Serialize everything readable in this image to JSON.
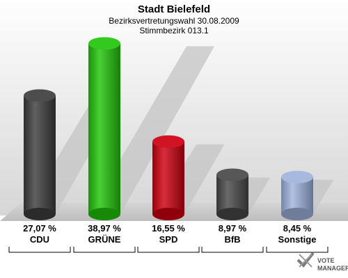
{
  "header": {
    "title": "Stadt Bielefeld",
    "subtitle": "Bezirksvertretungswahl 30.08.2009",
    "district": "Stimmbezirk 013.1"
  },
  "chart_data": {
    "type": "bar",
    "categories": [
      "CDU",
      "GRÜNE",
      "SPD",
      "BfB",
      "Sonstige"
    ],
    "values": [
      27.07,
      38.97,
      16.55,
      8.97,
      8.45
    ],
    "value_labels": [
      "27,07 %",
      "38,97 %",
      "16,55 %",
      "8,97 %",
      "8,45 %"
    ],
    "colors": [
      "#3d3d3d",
      "#22c40a",
      "#cc0010",
      "#484848",
      "#9fb3dc"
    ],
    "ylim": [
      0,
      40
    ],
    "grid": false,
    "legend": "none"
  },
  "logo": {
    "line1": "VOTE",
    "line2": "MANAGER"
  }
}
